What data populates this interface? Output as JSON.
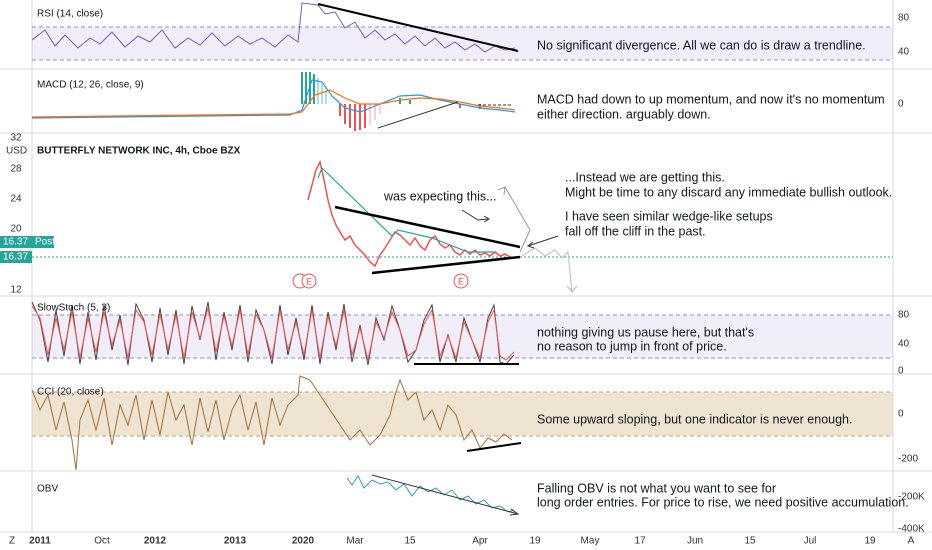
{
  "panes": [
    {
      "label": "RSI (14, close)",
      "ticks": [
        "80",
        "40"
      ],
      "notes": [
        "No significant divergence. All we can do is draw a trendline."
      ]
    },
    {
      "label": "MACD (12, 26, close, 9)",
      "ticks": [
        "0"
      ],
      "notes": [
        "MACD had down to up momentum, and now it's no momentum",
        "either direction. arguably down."
      ]
    },
    {
      "label": "BUTTERFLY NETWORK INC, 4h, Cboe BZX",
      "ticks": [
        "32",
        "28",
        "24",
        "20",
        "12"
      ],
      "notes": [
        "was expecting this...",
        "...Instead we are getting this.",
        "Might be time to any discard any immediate bullish outlook.",
        "I have seen similar wedge-like setups",
        "fall off the cliff in the past."
      ]
    },
    {
      "label": "SlowStoch (5, 3)",
      "ticks": [
        "80",
        "40",
        "0"
      ],
      "notes": [
        "nothing giving us pause here, but that's",
        "no reason to jump in front of price."
      ]
    },
    {
      "label": "CCI (20, close)",
      "ticks": [
        "0",
        "-200"
      ],
      "notes": [
        "Some upward sloping, but one indicator is never enough."
      ]
    },
    {
      "label": "OBV",
      "ticks": [
        "-200K",
        "-400K"
      ],
      "notes": [
        "Falling OBV is not what you want to see for",
        "long order entries. For price to rise, we need positive accumulation."
      ]
    }
  ],
  "currency": "USD",
  "price_tags": [
    "16.37",
    "Post",
    "16.37"
  ],
  "earnings_markers": [
    "E",
    "E"
  ],
  "x_axis": [
    "2011",
    "Oct",
    "2012",
    "2013",
    "2020",
    "Mar",
    "15",
    "Apr",
    "19",
    "May",
    "17",
    "Jun",
    "15",
    "Jul",
    "19"
  ],
  "corner_buttons": [
    "Z",
    "A"
  ]
}
